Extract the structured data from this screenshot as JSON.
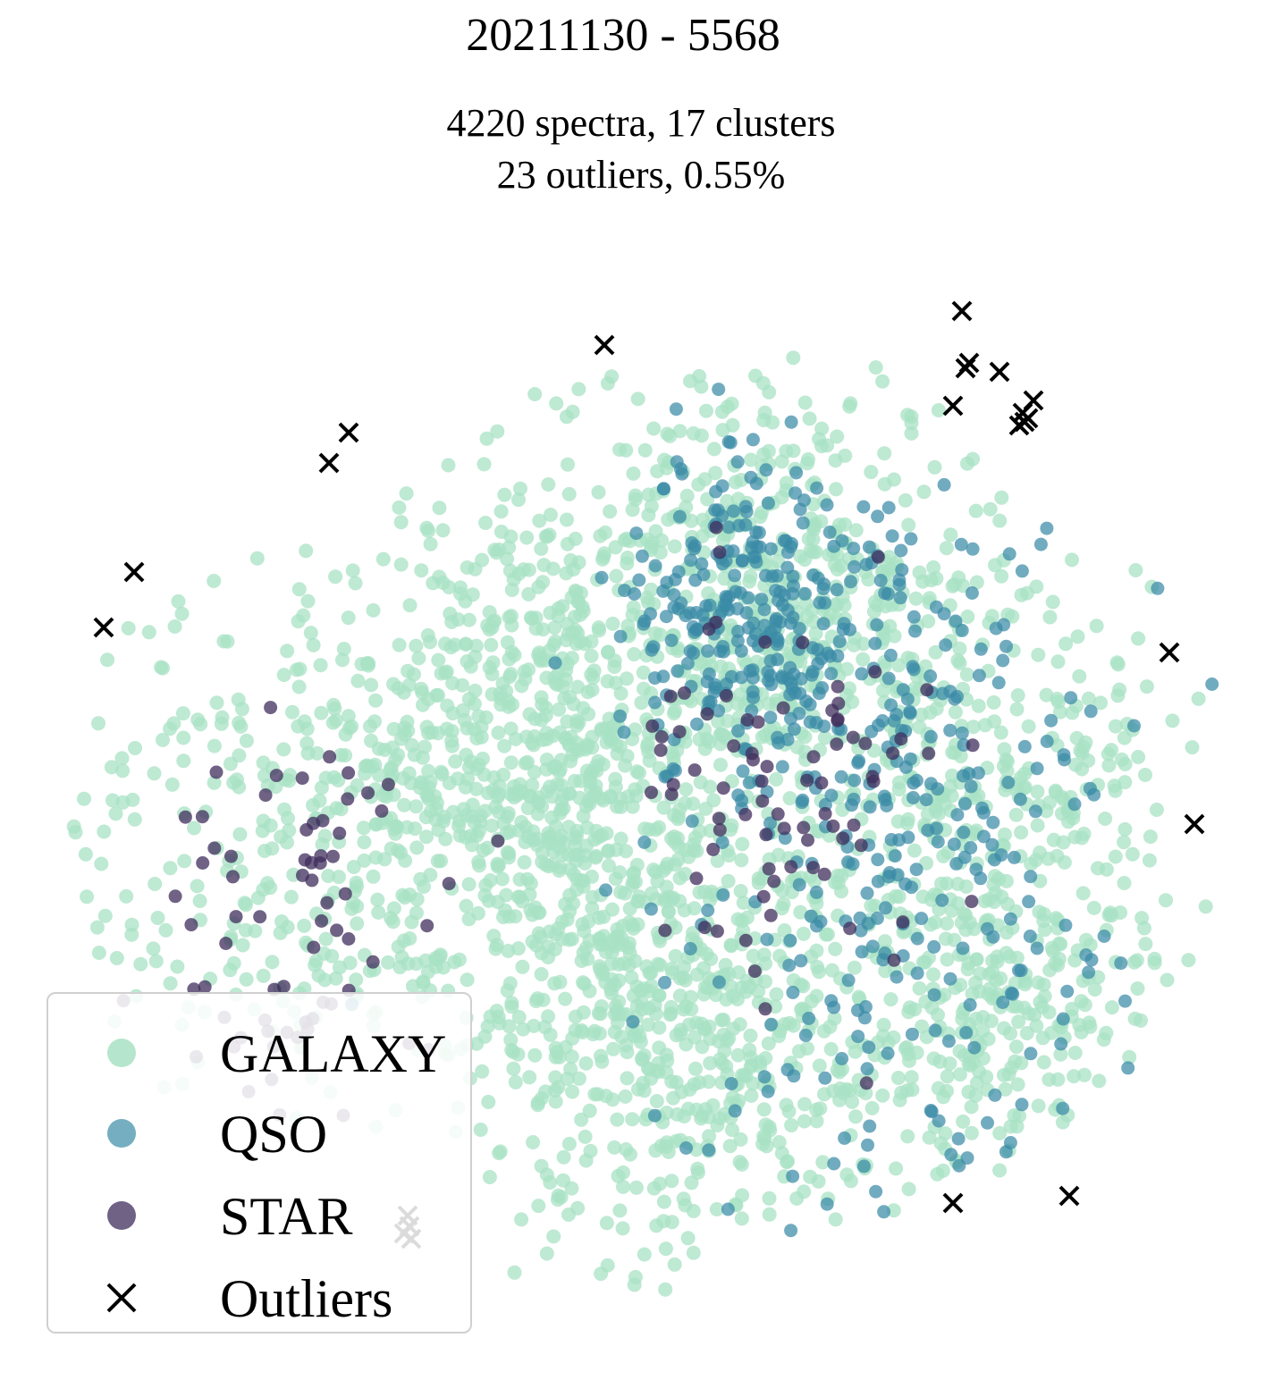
{
  "chart_data": {
    "type": "scatter",
    "title": "20211130 - 5568",
    "subtitle_lines": [
      "4220 spectra, 17 clusters",
      "23 outliers, 0.55%"
    ],
    "xlabel": "",
    "ylabel": "",
    "axes_visible": false,
    "grid": false,
    "legend_position": "lower-left",
    "legend": [
      "GALAXY",
      "QSO",
      "STAR",
      "Outliers"
    ],
    "series": [
      {
        "name": "GALAXY",
        "marker": "circle",
        "color": "#a8e2c4",
        "count": 2700
      },
      {
        "name": "QSO",
        "marker": "circle",
        "color": "#3a8ba6",
        "count": 560
      },
      {
        "name": "STAR",
        "marker": "circle",
        "color": "#3f2d5c",
        "count": 150
      },
      {
        "name": "Outliers",
        "marker": "x",
        "color": "#000000",
        "count": 23,
        "points": [
          [
            1076,
            348
          ],
          [
            676,
            386
          ],
          [
            1084,
            406
          ],
          [
            1080,
            412
          ],
          [
            1118,
            416
          ],
          [
            1066,
            454
          ],
          [
            1156,
            448
          ],
          [
            1144,
            462
          ],
          [
            1150,
            468
          ],
          [
            1140,
            476
          ],
          [
            1146,
            472
          ],
          [
            390,
            484
          ],
          [
            368,
            518
          ],
          [
            150,
            640
          ],
          [
            116,
            702
          ],
          [
            1308,
            730
          ],
          [
            1336,
            922
          ],
          [
            1066,
            1346
          ],
          [
            1196,
            1338
          ],
          [
            456,
            1360
          ],
          [
            458,
            1372
          ],
          [
            452,
            1380
          ],
          [
            460,
            1386
          ]
        ]
      }
    ],
    "regions": {
      "GALAXY": [
        [
          0.25,
          0.5,
          0.26,
          0.28
        ],
        [
          0.42,
          0.45,
          0.12,
          0.3
        ],
        [
          0.55,
          0.7,
          0.14,
          0.22
        ],
        [
          0.62,
          0.3,
          0.15,
          0.2
        ],
        [
          0.8,
          0.6,
          0.14,
          0.3
        ]
      ],
      "QSO": [
        [
          0.72,
          0.55,
          0.18,
          0.32
        ],
        [
          0.6,
          0.3,
          0.1,
          0.15
        ]
      ],
      "STAR": [
        [
          0.63,
          0.45,
          0.12,
          0.2
        ],
        [
          0.2,
          0.6,
          0.12,
          0.2
        ]
      ]
    }
  }
}
